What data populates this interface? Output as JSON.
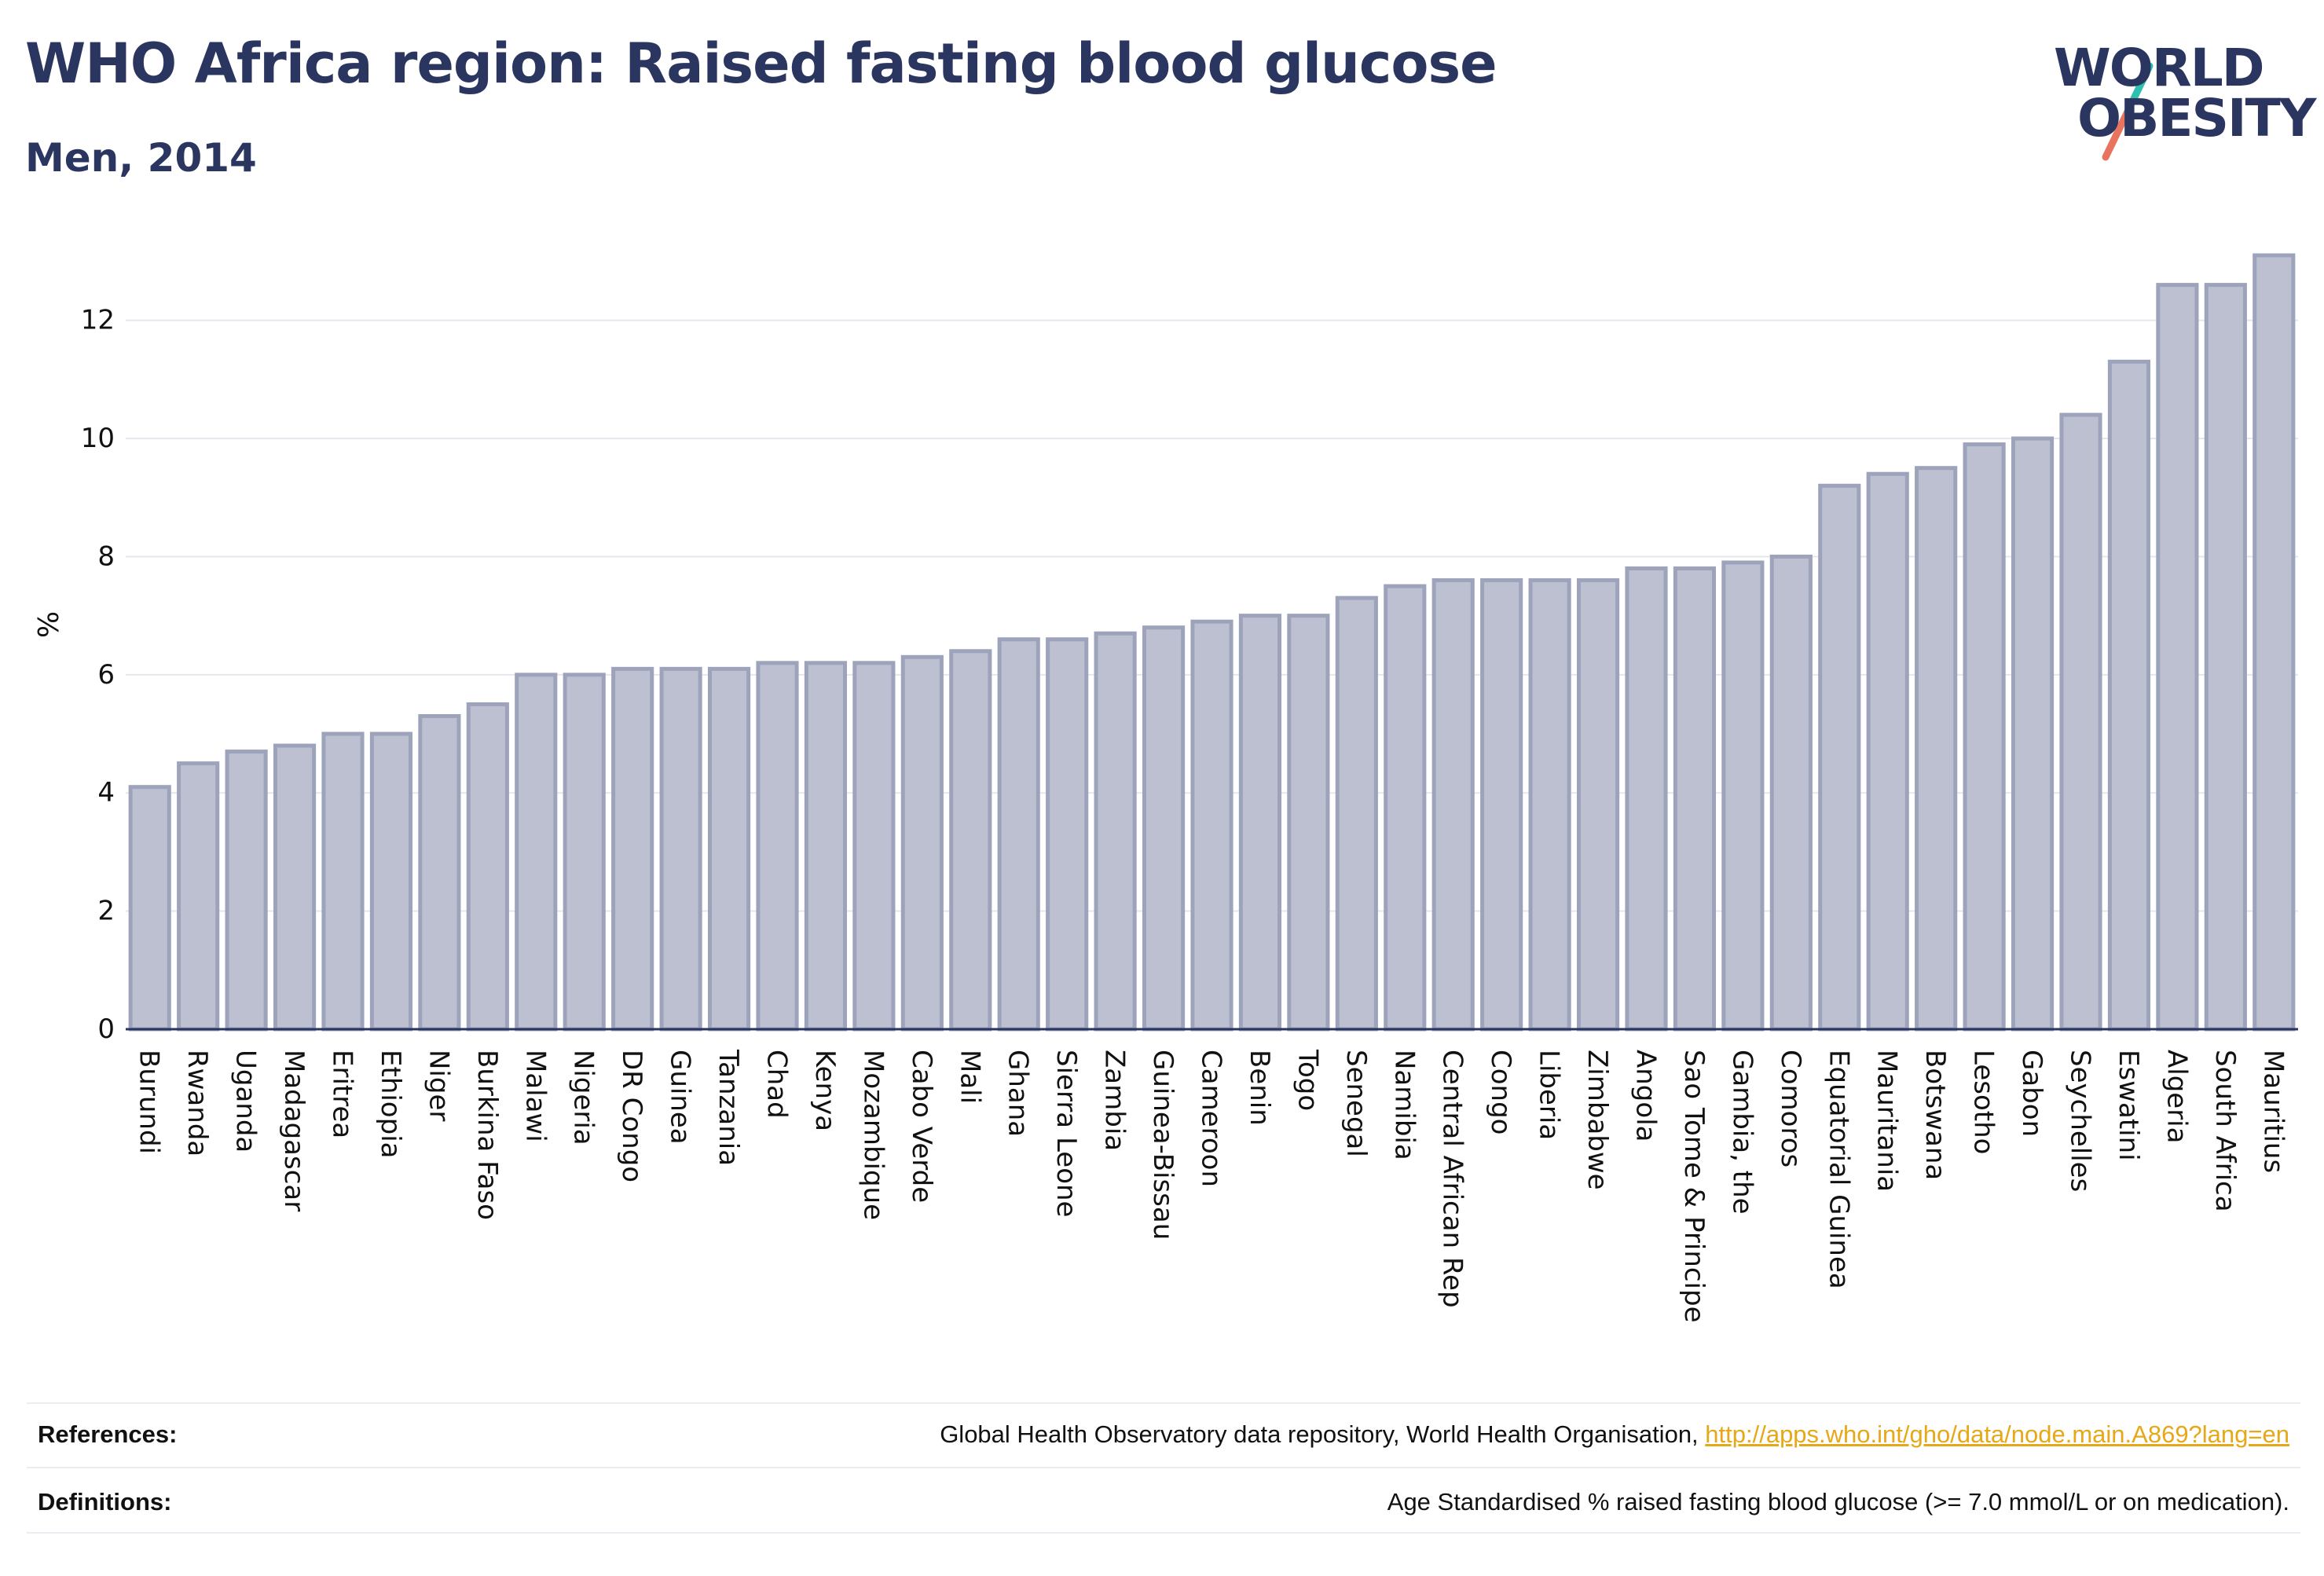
{
  "header": {
    "title": "WHO Africa region: Raised fasting blood glucose",
    "subtitle": "Men, 2014"
  },
  "logo": {
    "line1": "WORLD",
    "line2": "OBESITY",
    "accent_teal": "#2ebfb3",
    "accent_coral": "#e8735f"
  },
  "colors": {
    "bar_fill": "#bcc0d0",
    "bar_stroke": "#9ea3bc",
    "text_dark": "#2b3660",
    "link": "#e6a817"
  },
  "chart_data": {
    "type": "bar",
    "title": "WHO Africa region: Raised fasting blood glucose",
    "subtitle": "Men, 2014",
    "xlabel": "",
    "ylabel": "%",
    "ylim": [
      0,
      13.1
    ],
    "yticks": [
      0,
      2,
      4,
      6,
      8,
      10,
      12
    ],
    "grid": true,
    "categories": [
      "Burundi",
      "Rwanda",
      "Uganda",
      "Madagascar",
      "Eritrea",
      "Ethiopia",
      "Niger",
      "Burkina Faso",
      "Malawi",
      "Nigeria",
      "DR Congo",
      "Guinea",
      "Tanzania",
      "Chad",
      "Kenya",
      "Mozambique",
      "Cabo Verde",
      "Mali",
      "Ghana",
      "Sierra Leone",
      "Zambia",
      "Guinea-Bissau",
      "Cameroon",
      "Benin",
      "Togo",
      "Senegal",
      "Namibia",
      "Central African Rep",
      "Congo",
      "Liberia",
      "Zimbabwe",
      "Angola",
      "Sao Tome & Principe",
      "Gambia, the",
      "Comoros",
      "Equatorial Guinea",
      "Mauritania",
      "Botswana",
      "Lesotho",
      "Gabon",
      "Seychelles",
      "Eswatini",
      "Algeria",
      "South Africa",
      "Mauritius"
    ],
    "values": [
      4.1,
      4.5,
      4.7,
      4.8,
      5.0,
      5.0,
      5.3,
      5.5,
      6.0,
      6.0,
      6.1,
      6.1,
      6.1,
      6.2,
      6.2,
      6.2,
      6.3,
      6.4,
      6.6,
      6.6,
      6.7,
      6.8,
      6.9,
      7.0,
      7.0,
      7.3,
      7.5,
      7.6,
      7.6,
      7.6,
      7.6,
      7.8,
      7.8,
      7.9,
      8.0,
      9.2,
      9.4,
      9.5,
      9.9,
      10.0,
      10.4,
      11.3,
      12.6,
      12.6,
      13.1
    ]
  },
  "footer": {
    "references_label": "References:",
    "references_text": "Global Health Observatory data repository, World Health Organisation, ",
    "references_link": "http://apps.who.int/gho/data/node.main.A869?lang=en",
    "definitions_label": "Definitions:",
    "definitions_text": "Age Standardised % raised fasting blood glucose (>= 7.0 mmol/L or on medication)."
  }
}
